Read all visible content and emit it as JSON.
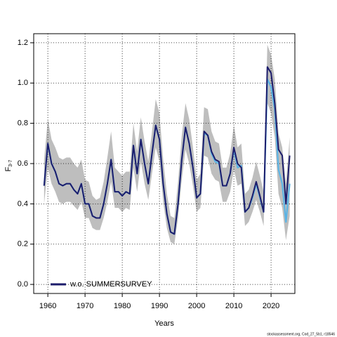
{
  "chart_data": {
    "type": "line",
    "xlabel": "Years",
    "ylabel": "F",
    "ylabel_sub": "3-7",
    "source": "stockassessment.org, Cod_27_5b1, r18546",
    "x": [
      1959,
      1960,
      1961,
      1962,
      1963,
      1964,
      1965,
      1966,
      1967,
      1968,
      1969,
      1970,
      1971,
      1972,
      1973,
      1974,
      1975,
      1976,
      1977,
      1978,
      1979,
      1980,
      1981,
      1982,
      1983,
      1984,
      1985,
      1986,
      1987,
      1988,
      1989,
      1990,
      1991,
      1992,
      1993,
      1994,
      1995,
      1996,
      1997,
      1998,
      1999,
      2000,
      2001,
      2002,
      2003,
      2004,
      2005,
      2006,
      2007,
      2008,
      2009,
      2010,
      2011,
      2012,
      2013,
      2014,
      2015,
      2016,
      2017,
      2018,
      2019,
      2020,
      2021,
      2022,
      2023,
      2024,
      2025
    ],
    "band": {
      "color": "#bebebe",
      "upper": [
        0.62,
        0.82,
        0.72,
        0.68,
        0.63,
        0.62,
        0.63,
        0.63,
        0.6,
        0.58,
        0.62,
        0.52,
        0.51,
        0.44,
        0.42,
        0.43,
        0.51,
        0.63,
        0.76,
        0.58,
        0.56,
        0.54,
        0.56,
        0.56,
        0.8,
        0.66,
        0.83,
        0.71,
        0.61,
        0.76,
        0.92,
        0.85,
        0.62,
        0.45,
        0.34,
        0.33,
        0.51,
        0.74,
        0.9,
        0.82,
        0.68,
        0.52,
        0.55,
        0.88,
        0.87,
        0.76,
        0.71,
        0.7,
        0.58,
        0.58,
        0.65,
        0.79,
        0.68,
        0.7,
        0.45,
        0.47,
        0.53,
        0.61,
        0.54,
        0.46,
        1.19,
        1.14,
        1.02,
        0.75,
        0.68,
        0.5,
        0.73
      ],
      "lower": [
        0.4,
        0.58,
        0.5,
        0.46,
        0.41,
        0.4,
        0.41,
        0.41,
        0.39,
        0.37,
        0.41,
        0.33,
        0.33,
        0.28,
        0.27,
        0.27,
        0.33,
        0.41,
        0.51,
        0.38,
        0.38,
        0.36,
        0.38,
        0.37,
        0.58,
        0.46,
        0.61,
        0.5,
        0.42,
        0.55,
        0.68,
        0.61,
        0.41,
        0.28,
        0.21,
        0.2,
        0.33,
        0.52,
        0.67,
        0.6,
        0.49,
        0.36,
        0.38,
        0.64,
        0.63,
        0.55,
        0.52,
        0.51,
        0.41,
        0.41,
        0.46,
        0.57,
        0.49,
        0.5,
        0.29,
        0.31,
        0.36,
        0.42,
        0.36,
        0.29,
        0.9,
        0.85,
        0.73,
        0.45,
        0.38,
        0.22,
        0.34
      ]
    },
    "series": [
      {
        "color": "#5bb4e5",
        "width": 2.2,
        "values": [
          0.49,
          0.7,
          0.6,
          0.56,
          0.5,
          0.49,
          0.5,
          0.5,
          0.47,
          0.45,
          0.5,
          0.4,
          0.4,
          0.34,
          0.33,
          0.33,
          0.4,
          0.5,
          0.62,
          0.46,
          0.46,
          0.44,
          0.46,
          0.45,
          0.69,
          0.55,
          0.72,
          0.6,
          0.5,
          0.65,
          0.79,
          0.72,
          0.5,
          0.35,
          0.26,
          0.25,
          0.4,
          0.62,
          0.78,
          0.7,
          0.58,
          0.43,
          0.45,
          0.75,
          0.74,
          0.65,
          0.61,
          0.6,
          0.49,
          0.49,
          0.55,
          0.67,
          0.58,
          0.59,
          0.36,
          0.38,
          0.43,
          0.5,
          0.43,
          0.36,
          1.02,
          0.98,
          0.87,
          0.57,
          0.5,
          0.31,
          0.5
        ]
      },
      {
        "name": "w.o. SUMMERSURVEY",
        "color": "#1c1c6b",
        "width": 2,
        "values": [
          0.49,
          0.7,
          0.6,
          0.56,
          0.5,
          0.49,
          0.5,
          0.5,
          0.47,
          0.45,
          0.5,
          0.4,
          0.4,
          0.34,
          0.33,
          0.33,
          0.4,
          0.5,
          0.62,
          0.46,
          0.46,
          0.44,
          0.46,
          0.45,
          0.69,
          0.55,
          0.72,
          0.6,
          0.5,
          0.65,
          0.79,
          0.72,
          0.5,
          0.35,
          0.26,
          0.25,
          0.4,
          0.62,
          0.78,
          0.7,
          0.58,
          0.43,
          0.45,
          0.76,
          0.74,
          0.66,
          0.62,
          0.61,
          0.49,
          0.49,
          0.55,
          0.68,
          0.6,
          0.58,
          0.36,
          0.38,
          0.44,
          0.51,
          0.44,
          0.36,
          1.08,
          1.05,
          0.9,
          0.67,
          0.64,
          0.4,
          0.64
        ]
      }
    ],
    "xlim": [
      1956.2,
      2026.4
    ],
    "ylim": [
      -0.045,
      1.245
    ],
    "xticks": [
      1960,
      1970,
      1980,
      1990,
      2000,
      2010,
      2020
    ],
    "yticks": [
      {
        "value": 0,
        "label": "0.0"
      },
      {
        "value": 0.2,
        "label": "0.2"
      },
      {
        "value": 0.4,
        "label": "0.4"
      },
      {
        "value": 0.6,
        "label": "0.6"
      },
      {
        "value": 0.8,
        "label": "0.8"
      },
      {
        "value": 1,
        "label": "1.0"
      },
      {
        "value": 1.2,
        "label": "1.2"
      }
    ],
    "grid": true,
    "legend": "bottom-left"
  }
}
